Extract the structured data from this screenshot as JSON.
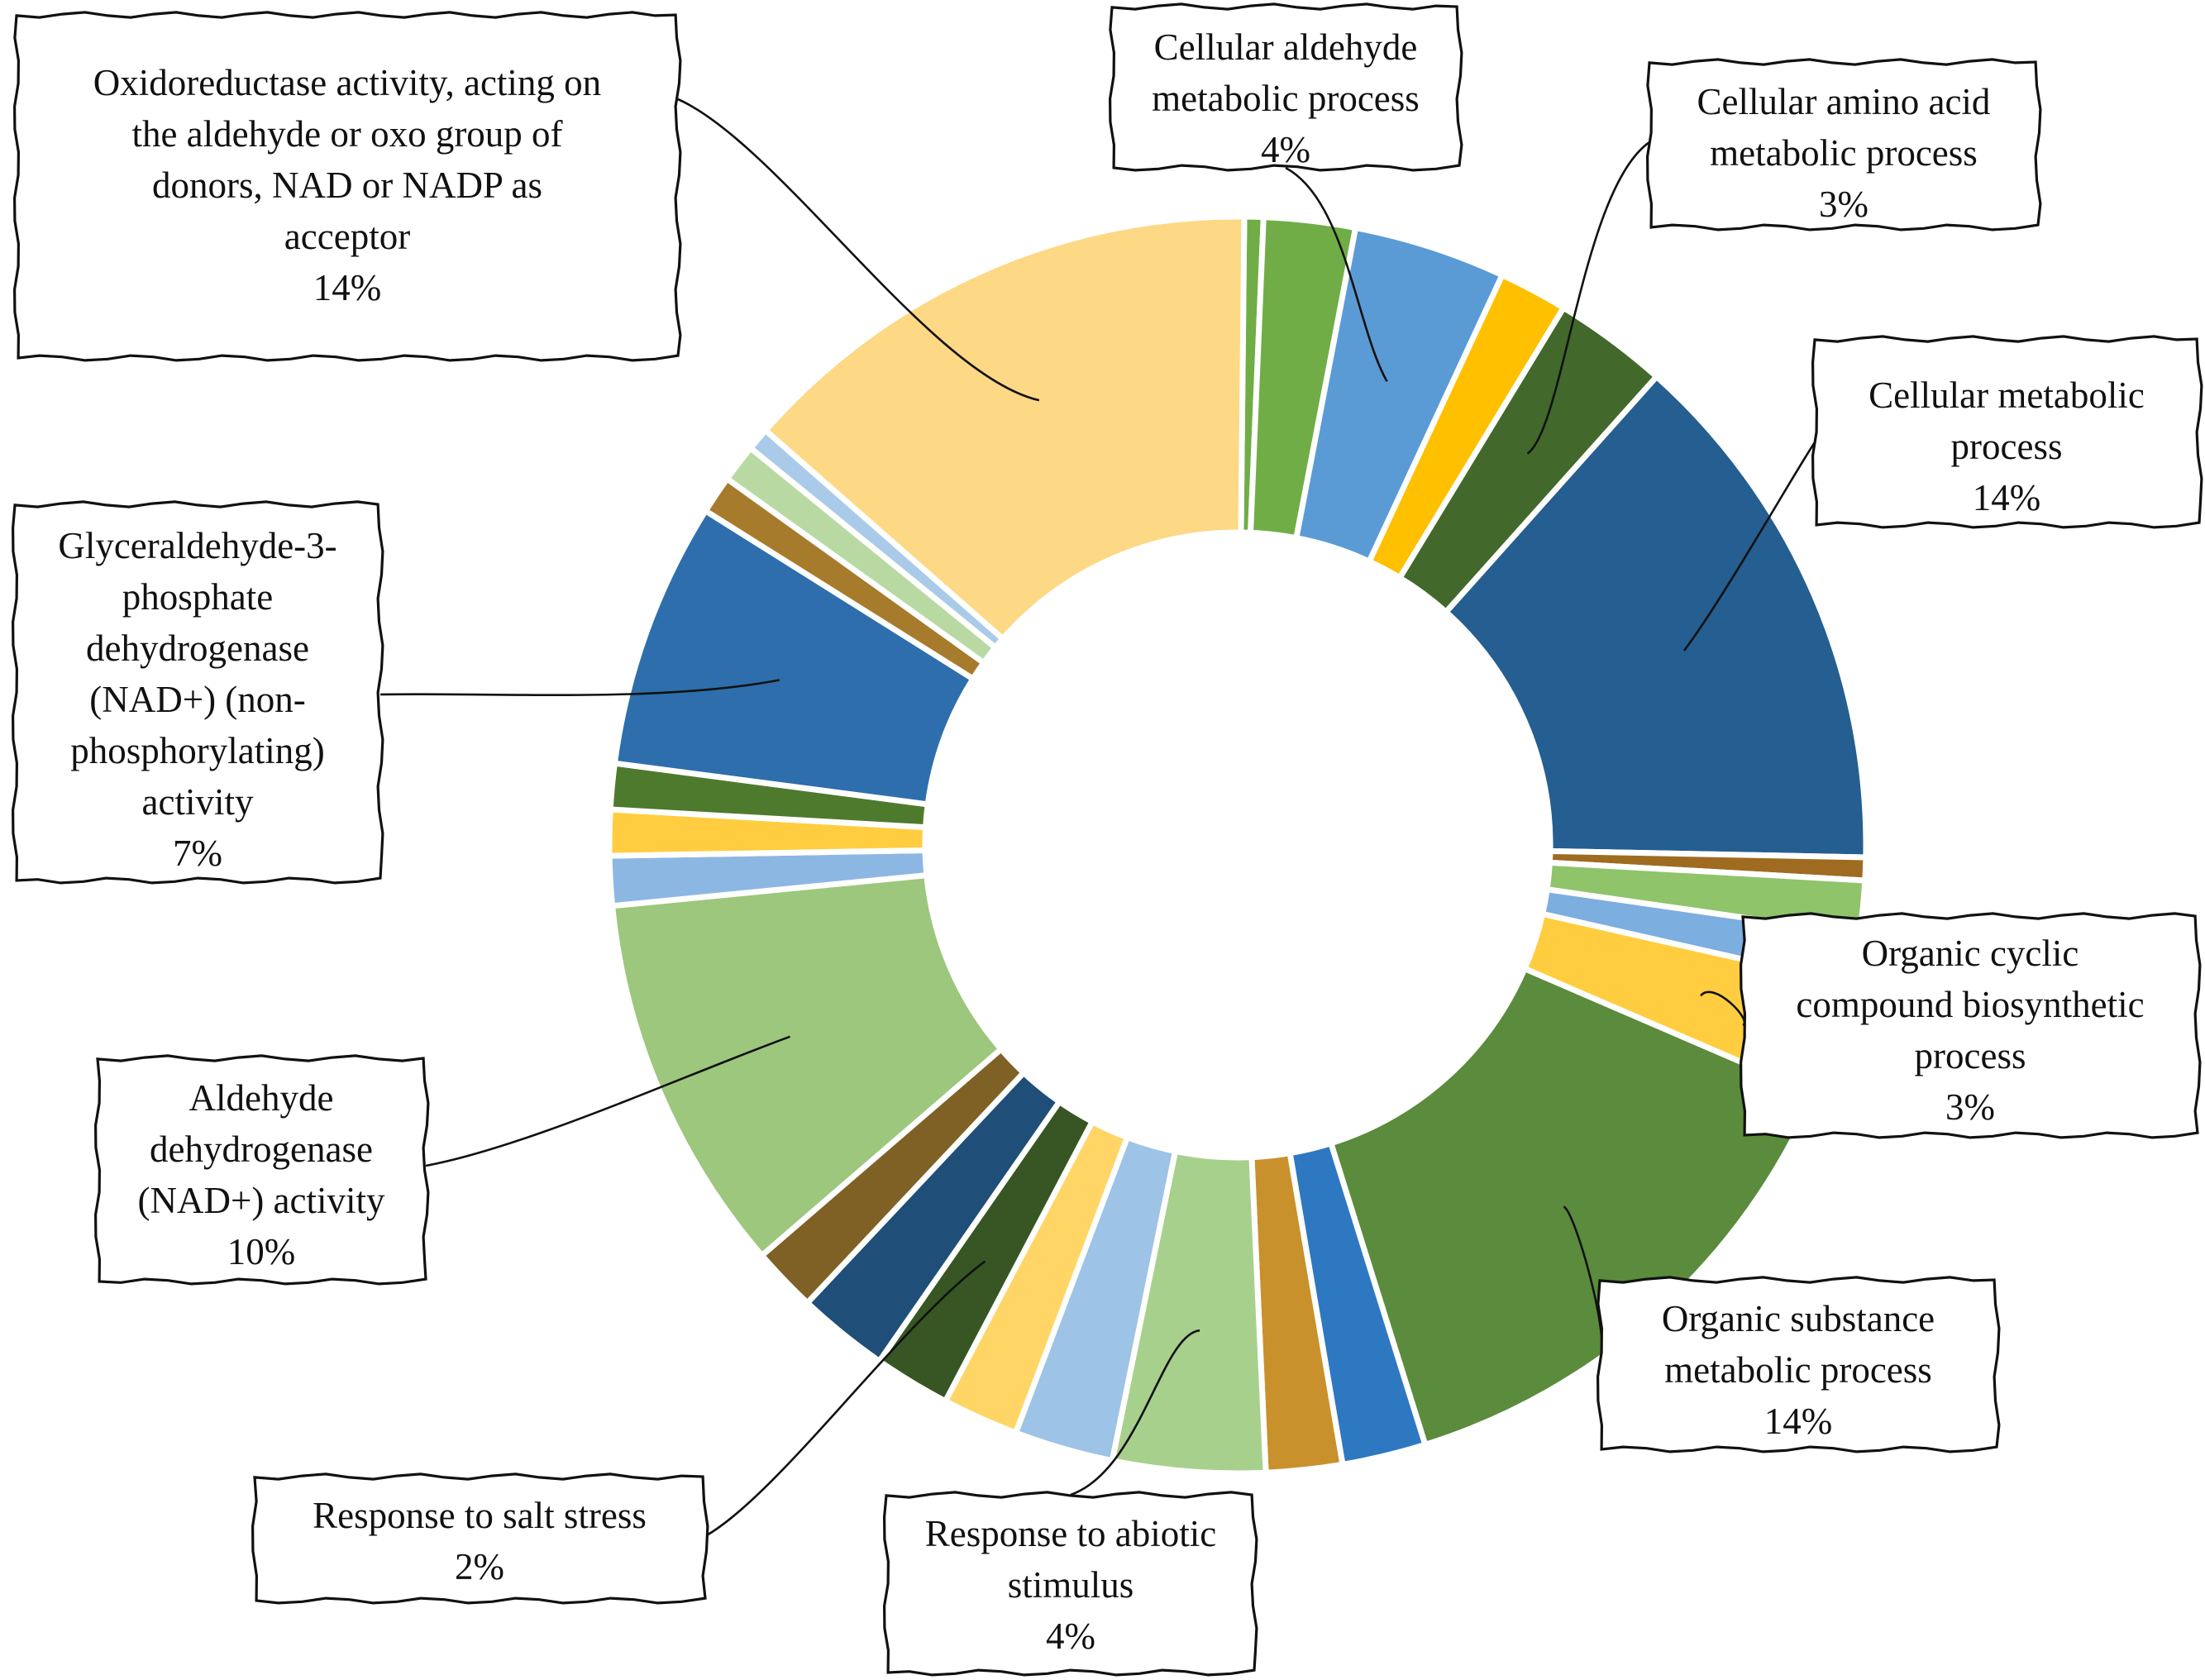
{
  "chart_data": {
    "type": "pie",
    "variant": "donut",
    "title": "",
    "slices": [
      {
        "name": "",
        "value": 0.5,
        "color": "#70ad47"
      },
      {
        "name": "",
        "value": 2.4,
        "color": "#70ad47"
      },
      {
        "name": "Cellular aldehyde metabolic process",
        "value": 4,
        "color": "#5b9bd5"
      },
      {
        "name": "",
        "value": 1.8,
        "color": "#ffc000"
      },
      {
        "name": "Cellular amino acid metabolic process",
        "value": 3,
        "color": "#43682b"
      },
      {
        "name": "Cellular metabolic process",
        "value": 14,
        "color": "#255e91"
      },
      {
        "name": "",
        "value": 0.6,
        "color": "#9e6b21"
      },
      {
        "name": "",
        "value": 1.4,
        "color": "#8fc46a"
      },
      {
        "name": "",
        "value": 1.3,
        "color": "#7caee0"
      },
      {
        "name": "Organic cyclic compound biosynthetic process",
        "value": 3,
        "color": "#ffcd3f"
      },
      {
        "name": "Organic substance metabolic process",
        "value": 14,
        "color": "#5b8b3c"
      },
      {
        "name": "",
        "value": 2.2,
        "color": "#2e78c2"
      },
      {
        "name": "",
        "value": 2.0,
        "color": "#c8912c"
      },
      {
        "name": "Response to abiotic stimulus",
        "value": 4,
        "color": "#a8d08d"
      },
      {
        "name": "",
        "value": 2.6,
        "color": "#9dc3e6"
      },
      {
        "name": "",
        "value": 2.0,
        "color": "#ffd566"
      },
      {
        "name": "Response to salt stress",
        "value": 2,
        "color": "#375623"
      },
      {
        "name": "",
        "value": 2.4,
        "color": "#1f4e79"
      },
      {
        "name": "",
        "value": 1.7,
        "color": "#7f6126"
      },
      {
        "name": "Aldehyde dehydrogenase (NAD+) activity",
        "value": 10,
        "color": "#9cc77c"
      },
      {
        "name": "",
        "value": 1.3,
        "color": "#8db7e3"
      },
      {
        "name": "",
        "value": 1.2,
        "color": "#ffcd3f"
      },
      {
        "name": "",
        "value": 1.2,
        "color": "#4e7a2e"
      },
      {
        "name": "Glyceraldehyde-3-phosphate dehydrogenase (NAD+) (non-phosphorylating) activity",
        "value": 7,
        "color": "#2e6eac"
      },
      {
        "name": "",
        "value": 1.0,
        "color": "#a77b2c"
      },
      {
        "name": "",
        "value": 1.0,
        "color": "#b8daa2"
      },
      {
        "name": "",
        "value": 0.6,
        "color": "#a9cbe9"
      },
      {
        "name": "Oxidoreductase activity, acting on the aldehyde or oxo group of donors, NAD or NADP as acceptor",
        "value": 14,
        "color": "#fdd885"
      }
    ],
    "labels": [
      {
        "slice": 27,
        "lines": [
          "Oxidoreductase activity, acting on",
          "the aldehyde or oxo group of",
          "donors, NAD or NADP as",
          "acceptor"
        ],
        "percent": "14%"
      },
      {
        "slice": 2,
        "lines": [
          "Cellular aldehyde",
          "metabolic process"
        ],
        "percent": "4%"
      },
      {
        "slice": 4,
        "lines": [
          "Cellular amino acid",
          "metabolic process"
        ],
        "percent": "3%"
      },
      {
        "slice": 5,
        "lines": [
          "Cellular metabolic",
          "process"
        ],
        "percent": "14%"
      },
      {
        "slice": 23,
        "lines": [
          "Glyceraldehyde-3-",
          "phosphate",
          "dehydrogenase",
          "(NAD+) (non-",
          "phosphorylating)",
          "activity"
        ],
        "percent": "7%"
      },
      {
        "slice": 9,
        "lines": [
          "Organic cyclic",
          "compound biosynthetic",
          "process"
        ],
        "percent": "3%"
      },
      {
        "slice": 19,
        "lines": [
          "Aldehyde",
          "dehydrogenase",
          "(NAD+) activity"
        ],
        "percent": "10%"
      },
      {
        "slice": 10,
        "lines": [
          "Organic substance",
          "metabolic process"
        ],
        "percent": "14%"
      },
      {
        "slice": 16,
        "lines": [
          "Response to salt stress"
        ],
        "percent": "2%"
      },
      {
        "slice": 13,
        "lines": [
          "Response to abiotic",
          "stimulus"
        ],
        "percent": "4%"
      }
    ]
  }
}
